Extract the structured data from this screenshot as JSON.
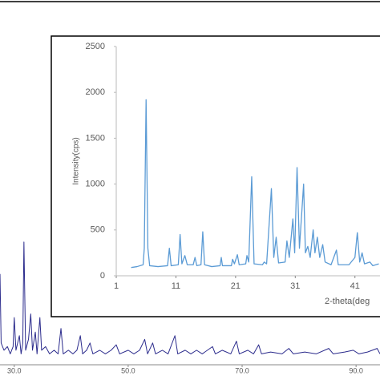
{
  "chart_data": [
    {
      "type": "line",
      "x": [
        27.5,
        27.7,
        28.2,
        28.8,
        29.3,
        29.8,
        30.0,
        30.3,
        30.9,
        31.2,
        31.5,
        31.7,
        32.0,
        32.5,
        32.9,
        33.2,
        33.7,
        34.0,
        34.5,
        34.8,
        35.5,
        36.2,
        37,
        37.7,
        38.2,
        38.6,
        39.5,
        40.3,
        41.0,
        41.6,
        42.0,
        42.7,
        43.3,
        43.8,
        45,
        46,
        47,
        47.9,
        48.5,
        50,
        51,
        52,
        52.9,
        53.4,
        54.3,
        54.8,
        56,
        57,
        58.2,
        58.7,
        60,
        61,
        62,
        63,
        64.8,
        65.3,
        66.5,
        68,
        69.0,
        69.5,
        71,
        72,
        72.9,
        73.4,
        75,
        77,
        78.2,
        79,
        81,
        83,
        85.2,
        86,
        88,
        89.5,
        90.5,
        92,
        93.7,
        94.2
      ],
      "series": [
        {
          "color": "#2b2b8c",
          "values": [
            25,
            6,
            4,
            5,
            3,
            5,
            13,
            4,
            8,
            3,
            6,
            33.8,
            4,
            7,
            14,
            4,
            9,
            3,
            13,
            4,
            5,
            3,
            4,
            3,
            10,
            3,
            4,
            3,
            4,
            8,
            3,
            4,
            6,
            3,
            4,
            3,
            4,
            5.5,
            3,
            4,
            3,
            4,
            7,
            3,
            6,
            3,
            4,
            3,
            8,
            3,
            4,
            3,
            4,
            3,
            5,
            3,
            4,
            3,
            6.5,
            3,
            4,
            3,
            5.5,
            3,
            3.5,
            3,
            4.5,
            3,
            3.5,
            3,
            4.5,
            3,
            3.5,
            4,
            3,
            3.5,
            4.5,
            3
          ]
        }
      ],
      "xlim": [
        27.5,
        94.2
      ],
      "ylim": [
        0,
        100
      ],
      "xticks": [
        {
          "value": 30,
          "label": "30.0"
        },
        {
          "value": 50,
          "label": "50.0"
        },
        {
          "value": 70,
          "label": "70.0"
        },
        {
          "value": 90,
          "label": "90.0"
        }
      ]
    },
    {
      "type": "line",
      "x_label": "2-theta(deg",
      "y_label": "Intensity(cps)",
      "x": [
        3.5,
        4.5,
        5.5,
        5.7,
        6.0,
        6.3,
        6.6,
        8,
        9.6,
        9.9,
        10.2,
        11.4,
        11.7,
        12,
        12.5,
        12.9,
        13.9,
        14.2,
        14.5,
        15.2,
        15.5,
        15.8,
        17,
        18.4,
        18.6,
        18.8,
        20.3,
        20.5,
        20.8,
        21.3,
        21.6,
        22.7,
        22.9,
        23.2,
        23.7,
        24.1,
        25.5,
        25.8,
        26.2,
        27.0,
        27.4,
        27.8,
        28.2,
        29.3,
        29.6,
        30.0,
        30.6,
        30.9,
        31.3,
        31.7,
        32.4,
        32.7,
        33.1,
        33.5,
        34.0,
        34.3,
        34.7,
        35.1,
        35.6,
        36.0,
        37.0,
        37.9,
        38.2,
        40.0,
        41.0,
        41.4,
        41.8,
        42.2,
        42.6,
        43.5,
        44,
        45
      ],
      "series": [
        {
          "color": "#5b9bd5",
          "values": [
            90,
            100,
            120,
            300,
            1920,
            300,
            110,
            100,
            110,
            300,
            110,
            120,
            450,
            130,
            220,
            120,
            120,
            200,
            110,
            120,
            480,
            120,
            100,
            110,
            200,
            110,
            110,
            180,
            130,
            230,
            120,
            130,
            220,
            150,
            1080,
            130,
            120,
            150,
            130,
            950,
            200,
            420,
            140,
            150,
            380,
            200,
            620,
            250,
            1180,
            300,
            1000,
            250,
            320,
            200,
            500,
            250,
            420,
            200,
            340,
            150,
            120,
            280,
            120,
            120,
            200,
            470,
            150,
            250,
            130,
            150,
            110,
            130
          ]
        }
      ],
      "xlim": [
        1,
        45.2
      ],
      "ylim": [
        0,
        2500
      ],
      "xticks": [
        1,
        11,
        21,
        31,
        41
      ],
      "yticks": [
        0,
        500,
        1000,
        1500,
        2000,
        2500
      ]
    }
  ]
}
